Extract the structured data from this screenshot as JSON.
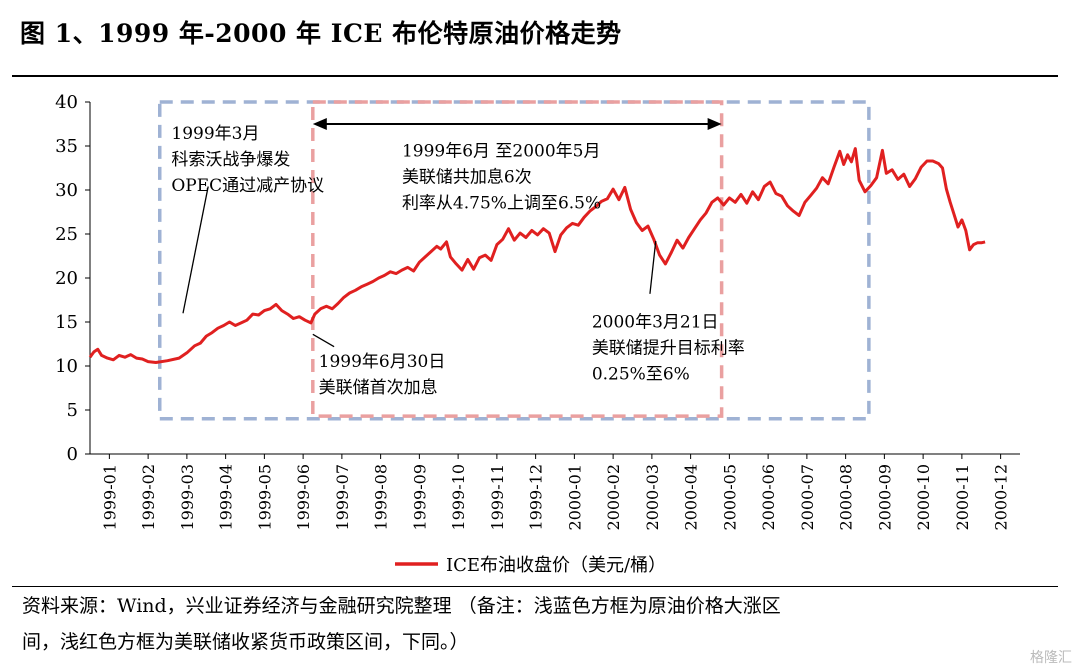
{
  "header": {
    "title": "图 1、1999 年-2000 年 ICE 布伦特原油价格走势"
  },
  "footer": {
    "source_line1": "资料来源：Wind，兴业证券经济与金融研究院整理 （备注：浅蓝色方框为原油价格大涨区",
    "source_line2": "间，浅红色方框为美联储收紧货币政策区间，下同。）",
    "watermark": "格隆汇"
  },
  "colors": {
    "series": "#e02020",
    "blue_box": "#9fb2d4",
    "red_box": "#eaa0a0"
  },
  "chart_data": {
    "type": "line",
    "ylim": [
      0,
      40
    ],
    "yticks": [
      0,
      5,
      10,
      15,
      20,
      25,
      30,
      35,
      40
    ],
    "xlim": [
      0,
      24
    ],
    "xticks": [
      "1999-01",
      "1999-02",
      "1999-03",
      "1999-04",
      "1999-05",
      "1999-06",
      "1999-07",
      "1999-08",
      "1999-09",
      "1999-10",
      "1999-11",
      "1999-12",
      "2000-01",
      "2000-02",
      "2000-03",
      "2000-04",
      "2000-05",
      "2000-06",
      "2000-07",
      "2000-08",
      "2000-09",
      "2000-10",
      "2000-11",
      "2000-12"
    ],
    "legend": {
      "position": "bottom",
      "label": "ICE布油收盘价（美元/桶）"
    },
    "series": [
      {
        "name": "ICE布油收盘价（美元/桶）",
        "points": [
          [
            0.0,
            11.0
          ],
          [
            0.1,
            11.6
          ],
          [
            0.2,
            11.9
          ],
          [
            0.3,
            11.2
          ],
          [
            0.45,
            10.9
          ],
          [
            0.6,
            10.7
          ],
          [
            0.75,
            11.2
          ],
          [
            0.9,
            11.0
          ],
          [
            1.05,
            11.3
          ],
          [
            1.2,
            10.9
          ],
          [
            1.35,
            10.8
          ],
          [
            1.5,
            10.5
          ],
          [
            1.7,
            10.4
          ],
          [
            2.0,
            10.6
          ],
          [
            2.3,
            10.9
          ],
          [
            2.5,
            11.5
          ],
          [
            2.7,
            12.3
          ],
          [
            2.85,
            12.6
          ],
          [
            3.0,
            13.4
          ],
          [
            3.15,
            13.8
          ],
          [
            3.3,
            14.3
          ],
          [
            3.45,
            14.6
          ],
          [
            3.6,
            15.0
          ],
          [
            3.75,
            14.6
          ],
          [
            3.9,
            14.9
          ],
          [
            4.05,
            15.2
          ],
          [
            4.2,
            15.9
          ],
          [
            4.35,
            15.8
          ],
          [
            4.5,
            16.3
          ],
          [
            4.65,
            16.5
          ],
          [
            4.8,
            17.0
          ],
          [
            4.95,
            16.3
          ],
          [
            5.1,
            15.9
          ],
          [
            5.25,
            15.4
          ],
          [
            5.4,
            15.6
          ],
          [
            5.55,
            15.2
          ],
          [
            5.7,
            14.9
          ],
          [
            5.8,
            15.9
          ],
          [
            5.95,
            16.5
          ],
          [
            6.1,
            16.8
          ],
          [
            6.25,
            16.5
          ],
          [
            6.4,
            17.1
          ],
          [
            6.55,
            17.8
          ],
          [
            6.7,
            18.3
          ],
          [
            6.85,
            18.6
          ],
          [
            7.0,
            19.0
          ],
          [
            7.15,
            19.3
          ],
          [
            7.3,
            19.6
          ],
          [
            7.45,
            20.0
          ],
          [
            7.6,
            20.3
          ],
          [
            7.75,
            20.7
          ],
          [
            7.9,
            20.5
          ],
          [
            8.05,
            20.9
          ],
          [
            8.2,
            21.2
          ],
          [
            8.35,
            20.8
          ],
          [
            8.5,
            21.8
          ],
          [
            8.65,
            22.4
          ],
          [
            8.8,
            23.0
          ],
          [
            8.95,
            23.6
          ],
          [
            9.05,
            23.3
          ],
          [
            9.2,
            24.1
          ],
          [
            9.3,
            22.4
          ],
          [
            9.45,
            21.6
          ],
          [
            9.6,
            20.9
          ],
          [
            9.75,
            22.1
          ],
          [
            9.9,
            21.0
          ],
          [
            10.05,
            22.3
          ],
          [
            10.2,
            22.6
          ],
          [
            10.35,
            22.0
          ],
          [
            10.5,
            23.8
          ],
          [
            10.65,
            24.4
          ],
          [
            10.8,
            25.6
          ],
          [
            10.95,
            24.3
          ],
          [
            11.1,
            25.1
          ],
          [
            11.25,
            24.6
          ],
          [
            11.4,
            25.4
          ],
          [
            11.55,
            24.9
          ],
          [
            11.7,
            25.6
          ],
          [
            11.85,
            25.1
          ],
          [
            12.0,
            23.0
          ],
          [
            12.15,
            24.9
          ],
          [
            12.3,
            25.7
          ],
          [
            12.45,
            26.2
          ],
          [
            12.6,
            26.0
          ],
          [
            12.75,
            26.9
          ],
          [
            12.9,
            27.6
          ],
          [
            13.05,
            28.1
          ],
          [
            13.2,
            28.7
          ],
          [
            13.35,
            29.0
          ],
          [
            13.5,
            30.1
          ],
          [
            13.65,
            28.9
          ],
          [
            13.8,
            30.3
          ],
          [
            13.95,
            27.8
          ],
          [
            14.1,
            26.3
          ],
          [
            14.25,
            25.4
          ],
          [
            14.4,
            25.9
          ],
          [
            14.55,
            24.4
          ],
          [
            14.7,
            22.6
          ],
          [
            14.85,
            21.6
          ],
          [
            15.0,
            22.9
          ],
          [
            15.15,
            24.3
          ],
          [
            15.3,
            23.4
          ],
          [
            15.45,
            24.6
          ],
          [
            15.6,
            25.6
          ],
          [
            15.75,
            26.6
          ],
          [
            15.9,
            27.4
          ],
          [
            16.05,
            28.6
          ],
          [
            16.2,
            29.1
          ],
          [
            16.35,
            28.3
          ],
          [
            16.5,
            29.1
          ],
          [
            16.65,
            28.6
          ],
          [
            16.8,
            29.5
          ],
          [
            16.95,
            28.5
          ],
          [
            17.1,
            29.8
          ],
          [
            17.25,
            28.9
          ],
          [
            17.4,
            30.4
          ],
          [
            17.55,
            30.9
          ],
          [
            17.7,
            29.6
          ],
          [
            17.85,
            29.3
          ],
          [
            18.0,
            28.2
          ],
          [
            18.15,
            27.6
          ],
          [
            18.3,
            27.1
          ],
          [
            18.45,
            28.6
          ],
          [
            18.6,
            29.4
          ],
          [
            18.75,
            30.2
          ],
          [
            18.9,
            31.4
          ],
          [
            19.05,
            30.7
          ],
          [
            19.2,
            32.6
          ],
          [
            19.35,
            34.4
          ],
          [
            19.45,
            32.9
          ],
          [
            19.55,
            34.0
          ],
          [
            19.65,
            33.2
          ],
          [
            19.75,
            34.7
          ],
          [
            19.85,
            31.1
          ],
          [
            20.0,
            29.8
          ],
          [
            20.15,
            30.5
          ],
          [
            20.3,
            31.4
          ],
          [
            20.45,
            34.5
          ],
          [
            20.55,
            31.9
          ],
          [
            20.7,
            32.3
          ],
          [
            20.85,
            31.2
          ],
          [
            21.0,
            31.8
          ],
          [
            21.15,
            30.4
          ],
          [
            21.3,
            31.3
          ],
          [
            21.45,
            32.6
          ],
          [
            21.6,
            33.3
          ],
          [
            21.75,
            33.3
          ],
          [
            21.9,
            33.0
          ],
          [
            22.0,
            32.5
          ],
          [
            22.1,
            30.1
          ],
          [
            22.2,
            28.6
          ],
          [
            22.3,
            27.2
          ],
          [
            22.4,
            25.8
          ],
          [
            22.5,
            26.6
          ],
          [
            22.6,
            25.4
          ],
          [
            22.7,
            23.2
          ],
          [
            22.8,
            23.8
          ],
          [
            22.9,
            24.0
          ],
          [
            23.0,
            24.0
          ],
          [
            23.1,
            24.1
          ]
        ]
      }
    ],
    "boxes": [
      {
        "name": "blue",
        "x": [
          1.8,
          20.1
        ],
        "y": [
          4.0,
          40.0
        ]
      },
      {
        "name": "red",
        "x": [
          5.75,
          16.3
        ],
        "y": [
          4.3,
          40.0
        ]
      }
    ],
    "arrow": {
      "from_x": 5.75,
      "to_x": 16.3,
      "y": 37.5
    },
    "annotations": [
      {
        "lines": [
          "1999年3月",
          "科索沃战争爆发",
          "OPEC通过减产协议"
        ],
        "text_at": [
          2.1,
          35.8
        ],
        "leader_from": [
          3.05,
          30.4
        ],
        "leader_to": [
          2.4,
          16.0
        ]
      },
      {
        "lines": [
          "1999年6月 至2000年5月",
          "美联储共加息6次",
          "利率从4.75%上调至6.5%"
        ],
        "text_at": [
          8.05,
          33.8
        ]
      },
      {
        "lines": [
          "1999年6月30日",
          "美联储首次加息"
        ],
        "text_at": [
          5.9,
          9.9
        ],
        "leader_from": [
          6.3,
          12.2
        ],
        "leader_to": [
          5.75,
          13.6
        ]
      },
      {
        "lines": [
          "2000年3月21日",
          "美联储提升目标利率",
          "0.25%至6%"
        ],
        "text_at": [
          12.95,
          14.4
        ],
        "leader_from": [
          14.45,
          18.2
        ],
        "leader_to": [
          14.6,
          24.2
        ]
      }
    ]
  }
}
